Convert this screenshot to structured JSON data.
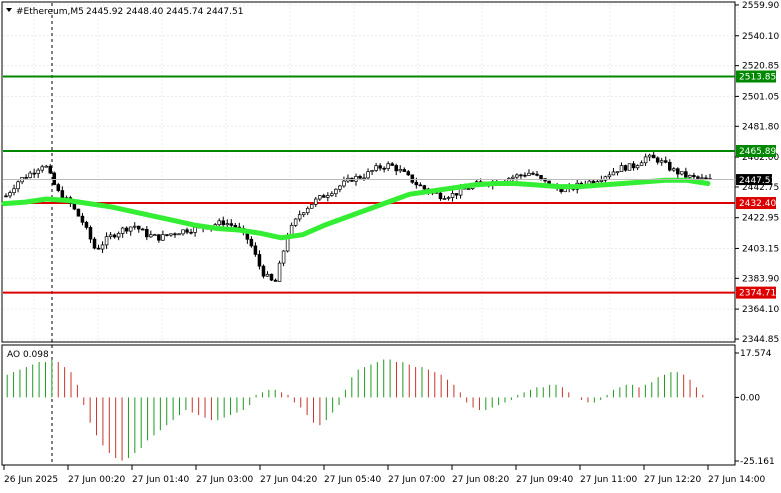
{
  "header": {
    "symbol": "#Ethereum,M5",
    "ohlc": "2445.92 2448.40 2445.74 2447.51"
  },
  "colors": {
    "background": "#ffffff",
    "grid": "#ececec",
    "ma_line": "#33ee33",
    "resistance": "#008800",
    "support": "#dd0000",
    "candle": "#000000",
    "ao_up": "#1f9a1f",
    "ao_down": "#c8332a",
    "current_price_box": "#000000"
  },
  "price_axis": {
    "ticks": [
      "2559.90",
      "2540.10",
      "2520.85",
      "2501.05",
      "2481.80",
      "2462.00",
      "2442.75",
      "2422.95",
      "2403.15",
      "2383.90",
      "2364.10",
      "2344.85"
    ],
    "current_price": "2447.51"
  },
  "levels": {
    "resistance": [
      "2513.85",
      "2465.89"
    ],
    "support": [
      "2432.40",
      "2374.71"
    ]
  },
  "ao_panel": {
    "label": "AO 0.098",
    "ticks": [
      "17.574",
      "0.00",
      "-25.161"
    ]
  },
  "time_axis": {
    "labels": [
      "26 Jun 2025",
      "27 Jun 00:20",
      "27 Jun 01:40",
      "27 Jun 03:00",
      "27 Jun 04:20",
      "27 Jun 05:40",
      "27 Jun 07:00",
      "27 Jun 08:20",
      "27 Jun 09:40",
      "27 Jun 11:00",
      "27 Jun 12:20",
      "27 Jun 14:00"
    ]
  },
  "chart_data": {
    "type": "line",
    "symbol": "#Ethereum",
    "timeframe": "M5",
    "y_range": [
      2344.85,
      2559.9
    ],
    "horizontal_levels": [
      {
        "value": 2513.85,
        "kind": "resistance"
      },
      {
        "value": 2465.89,
        "kind": "resistance"
      },
      {
        "value": 2432.4,
        "kind": "support"
      },
      {
        "value": 2374.71,
        "kind": "support"
      }
    ],
    "price_path": [
      2437,
      2447,
      2452,
      2458,
      2440,
      2432,
      2420,
      2402,
      2410,
      2415,
      2418,
      2412,
      2410,
      2413,
      2415,
      2416,
      2418,
      2420,
      2417,
      2408,
      2388,
      2380,
      2412,
      2426,
      2433,
      2438,
      2443,
      2448,
      2450,
      2455,
      2457,
      2452,
      2445,
      2440,
      2437,
      2438,
      2442,
      2445,
      2446,
      2448,
      2450,
      2452,
      2446,
      2442,
      2441,
      2445,
      2447,
      2451,
      2455,
      2456,
      2462,
      2460,
      2454,
      2450,
      2448,
      2447
    ],
    "ma_path": [
      2432,
      2433,
      2435,
      2434,
      2432,
      2430,
      2427,
      2424,
      2421,
      2418,
      2416,
      2415,
      2413,
      2410,
      2412,
      2418,
      2423,
      2428,
      2433,
      2438,
      2440,
      2442,
      2444,
      2445,
      2445,
      2444,
      2443,
      2443,
      2444,
      2445,
      2446,
      2447,
      2447,
      2445
    ],
    "ao_range": [
      -25.161,
      17.574
    ],
    "ao_values": [
      9,
      10,
      11,
      12,
      13,
      14,
      14,
      15,
      14,
      12,
      10,
      5,
      -3,
      -10,
      -15,
      -19,
      -22,
      -24,
      -25,
      -24,
      -22,
      -20,
      -17,
      -15,
      -13,
      -11,
      -9,
      -7,
      -5,
      -6,
      -7,
      -8,
      -9,
      -9,
      -8,
      -7,
      -6,
      -5,
      -3,
      1,
      2,
      3,
      3,
      2,
      1,
      -2,
      -4,
      -7,
      -10,
      -11,
      -9,
      -6,
      -3,
      3,
      8,
      11,
      12,
      13,
      14,
      15,
      15,
      14,
      14,
      13,
      12,
      12,
      11,
      10,
      9,
      7,
      5,
      2,
      -2,
      -4,
      -5,
      -5,
      -4,
      -3,
      -2,
      -1,
      1,
      2,
      3,
      4,
      4,
      5,
      5,
      4,
      2,
      0,
      -1,
      -2,
      -2,
      -1,
      1,
      3,
      4,
      5,
      5,
      4,
      5,
      6,
      8,
      9,
      10,
      10,
      9,
      7,
      4,
      1
    ]
  }
}
